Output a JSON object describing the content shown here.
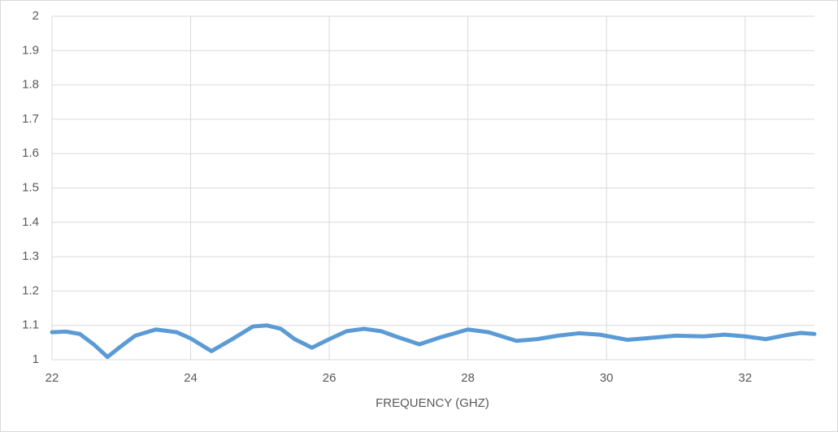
{
  "chart_data": {
    "type": "line",
    "x_label": "FREQUENCY (GHZ)",
    "x": [
      22,
      22.2,
      22.4,
      22.6,
      22.8,
      23.0,
      23.2,
      23.5,
      23.8,
      24.0,
      24.3,
      24.6,
      24.9,
      25.1,
      25.3,
      25.5,
      25.75,
      26.0,
      26.25,
      26.5,
      26.75,
      27.0,
      27.3,
      27.6,
      28.0,
      28.3,
      28.7,
      29.0,
      29.3,
      29.6,
      29.9,
      30.3,
      30.6,
      31.0,
      31.4,
      31.7,
      32.0,
      32.3,
      32.6,
      32.8,
      33.0
    ],
    "series": [
      {
        "color": "#5b9bd5",
        "values": [
          1.08,
          1.082,
          1.075,
          1.045,
          1.008,
          1.04,
          1.07,
          1.088,
          1.08,
          1.062,
          1.025,
          1.06,
          1.097,
          1.1,
          1.09,
          1.06,
          1.035,
          1.06,
          1.083,
          1.09,
          1.083,
          1.065,
          1.045,
          1.065,
          1.088,
          1.08,
          1.055,
          1.06,
          1.07,
          1.077,
          1.073,
          1.058,
          1.063,
          1.07,
          1.068,
          1.073,
          1.068,
          1.06,
          1.072,
          1.078,
          1.075
        ]
      }
    ],
    "xlim": [
      22,
      33
    ],
    "xticks": [
      22,
      24,
      26,
      28,
      30,
      32
    ],
    "ylim": [
      1,
      2
    ],
    "yticks": [
      1,
      1.1,
      1.2,
      1.3,
      1.4,
      1.5,
      1.6,
      1.7,
      1.8,
      1.9,
      2
    ],
    "grid": true
  }
}
